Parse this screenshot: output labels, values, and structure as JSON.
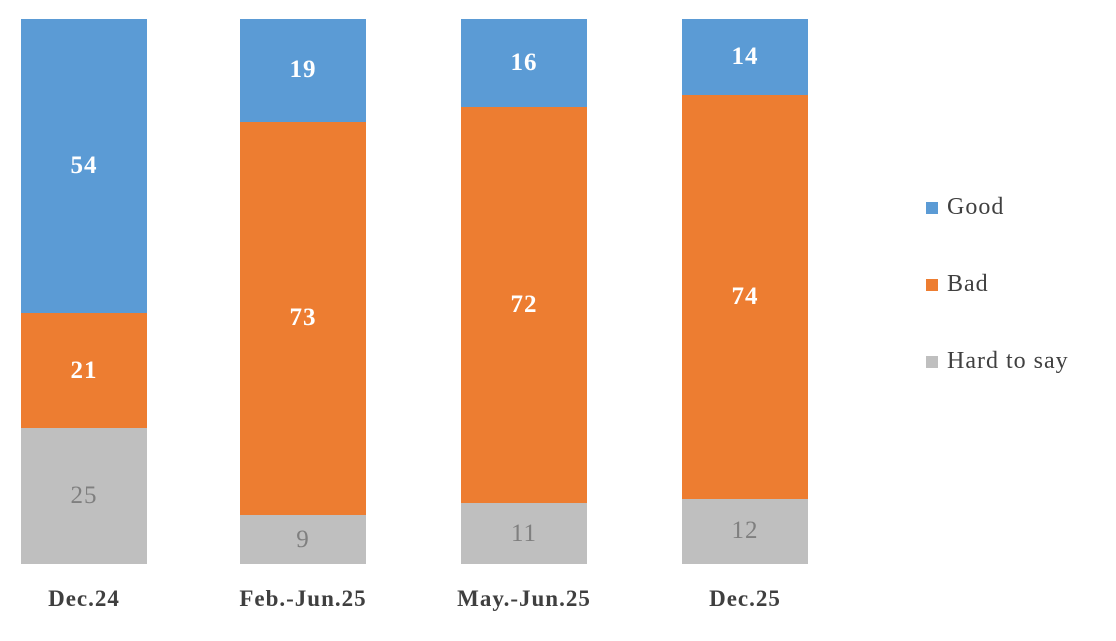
{
  "chart_data": {
    "type": "bar",
    "stacked": true,
    "percent_stacked": true,
    "title": "",
    "xlabel": "",
    "ylabel": "",
    "grid": false,
    "axes_visible": false,
    "background": "#ffffff",
    "categories": [
      "Dec.24",
      "Feb.-Jun.25",
      "May.-Jun.25",
      "Dec.25"
    ],
    "series": [
      {
        "name": "Good",
        "color": "#5b9bd5",
        "label_color": "#ffffff",
        "label_bold": true,
        "values": [
          54,
          19,
          16,
          14
        ]
      },
      {
        "name": "Bad",
        "color": "#ed7d31",
        "label_color": "#ffffff",
        "label_bold": true,
        "values": [
          21,
          73,
          72,
          74
        ]
      },
      {
        "name": "Hard to say",
        "color": "#bfbfbf",
        "label_color": "#7f7f7f",
        "label_bold": false,
        "values": [
          25,
          9,
          11,
          12
        ]
      }
    ],
    "stack_order_top_to_bottom": [
      "Good",
      "Bad",
      "Hard to say"
    ],
    "legend": {
      "position": "right",
      "entries": [
        "Good",
        "Bad",
        "Hard to say"
      ]
    },
    "text_colors": {
      "category_label": "#3f3f3f",
      "legend_label": "#404040"
    }
  }
}
